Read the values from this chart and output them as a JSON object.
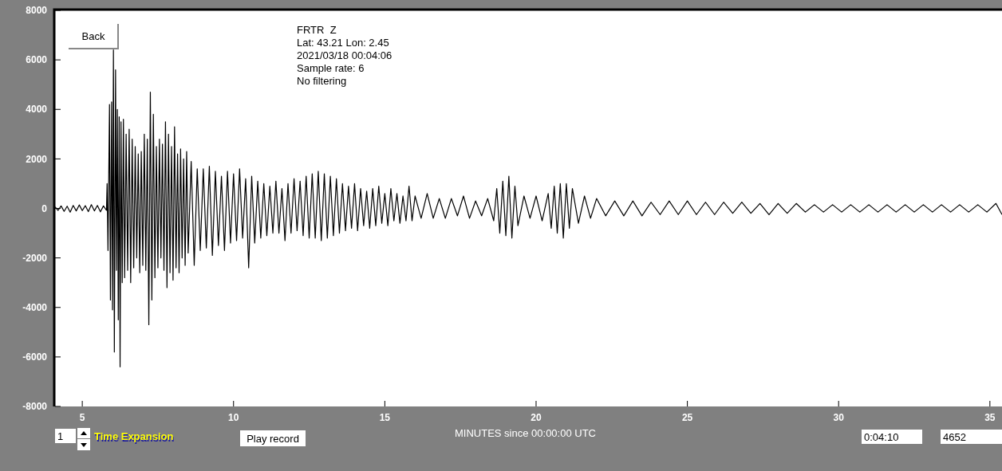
{
  "chart_data": {
    "type": "line",
    "title": "FRTR  Z",
    "xlabel": "MINUTES since 00:00:00 UTC",
    "annotations": [
      "Lat: 43.21 Lon: 2.45",
      "2021/03/18 00:04:06",
      "Sample rate: 6",
      "No filtering",
      "Back",
      "1",
      "Time Expansion",
      "Play record",
      "0:04:10",
      "4652"
    ],
    "xlim": [
      4.1,
      35.4
    ],
    "ylim": [
      -8000,
      8000
    ],
    "xticks": [
      5,
      10,
      15,
      20,
      25,
      30,
      35
    ],
    "yticks": [
      -8000,
      -6000,
      -4000,
      -2000,
      0,
      2000,
      4000,
      6000,
      8000
    ],
    "grid": false,
    "marker": "none",
    "line_style": "solid",
    "series": [
      {
        "color": "#000000",
        "x": [
          4.1,
          4.2,
          4.3,
          4.4,
          4.5,
          4.6,
          4.7,
          4.8,
          4.9,
          5.0,
          5.1,
          5.2,
          5.3,
          5.4,
          5.5,
          5.6,
          5.7,
          5.8,
          5.82,
          5.85,
          5.9,
          5.93,
          5.97,
          6.0,
          6.03,
          6.06,
          6.1,
          6.13,
          6.16,
          6.19,
          6.22,
          6.25,
          6.28,
          6.32,
          6.36,
          6.4,
          6.45,
          6.5,
          6.55,
          6.6,
          6.65,
          6.7,
          6.75,
          6.8,
          6.85,
          6.9,
          6.95,
          7.0,
          7.05,
          7.1,
          7.15,
          7.2,
          7.25,
          7.3,
          7.35,
          7.4,
          7.45,
          7.5,
          7.55,
          7.6,
          7.65,
          7.7,
          7.75,
          7.8,
          7.85,
          7.9,
          7.95,
          8.0,
          8.05,
          8.1,
          8.15,
          8.2,
          8.25,
          8.3,
          8.35,
          8.4,
          8.45,
          8.5,
          8.6,
          8.7,
          8.8,
          8.9,
          9.0,
          9.1,
          9.2,
          9.3,
          9.4,
          9.5,
          9.6,
          9.7,
          9.8,
          9.9,
          10.0,
          10.1,
          10.2,
          10.3,
          10.4,
          10.5,
          10.6,
          10.7,
          10.8,
          10.9,
          11.0,
          11.1,
          11.2,
          11.3,
          11.4,
          11.5,
          11.6,
          11.7,
          11.8,
          11.9,
          12.0,
          12.1,
          12.2,
          12.3,
          12.4,
          12.5,
          12.6,
          12.7,
          12.8,
          12.9,
          13.0,
          13.1,
          13.2,
          13.3,
          13.4,
          13.5,
          13.6,
          13.7,
          13.8,
          13.9,
          14.0,
          14.1,
          14.2,
          14.3,
          14.4,
          14.5,
          14.6,
          14.7,
          14.8,
          14.9,
          15.0,
          15.1,
          15.2,
          15.3,
          15.4,
          15.5,
          15.6,
          15.7,
          15.8,
          15.9,
          16.0,
          16.2,
          16.4,
          16.6,
          16.8,
          17.0,
          17.2,
          17.4,
          17.6,
          17.8,
          18.0,
          18.2,
          18.4,
          18.6,
          18.7,
          18.8,
          18.9,
          19.0,
          19.1,
          19.2,
          19.3,
          19.4,
          19.6,
          19.8,
          20.0,
          20.2,
          20.4,
          20.5,
          20.6,
          20.7,
          20.8,
          20.9,
          21.0,
          21.1,
          21.2,
          21.4,
          21.6,
          21.8,
          22.0,
          22.3,
          22.6,
          22.9,
          23.2,
          23.5,
          23.8,
          24.1,
          24.4,
          24.7,
          25.0,
          25.3,
          25.6,
          25.9,
          26.2,
          26.5,
          26.8,
          27.1,
          27.4,
          27.7,
          28.0,
          28.3,
          28.6,
          28.9,
          29.2,
          29.5,
          29.8,
          30.1,
          30.4,
          30.7,
          31.0,
          31.3,
          31.6,
          31.9,
          32.2,
          32.5,
          32.8,
          33.1,
          33.4,
          33.7,
          34.0,
          34.3,
          34.6,
          34.9,
          35.2,
          35.4
        ],
        "values": [
          60,
          -80,
          100,
          -120,
          90,
          -150,
          120,
          -100,
          140,
          -90,
          110,
          -130,
          150,
          -100,
          120,
          -140,
          100,
          -80,
          1000,
          -1700,
          4200,
          -3700,
          4300,
          -4100,
          6400,
          -5800,
          5600,
          -2500,
          4000,
          -4500,
          3700,
          -6400,
          3500,
          -3000,
          3600,
          -2800,
          3000,
          -2500,
          3200,
          -3000,
          2800,
          -2400,
          2500,
          -2000,
          2200,
          -2600,
          2300,
          -2300,
          3000,
          -2500,
          2800,
          -4700,
          4700,
          -3700,
          3800,
          -2800,
          2500,
          -2400,
          2800,
          -2000,
          2600,
          -2500,
          3500,
          -3200,
          3000,
          -2600,
          2500,
          -2900,
          3300,
          -2400,
          2200,
          -2600,
          2400,
          -2000,
          2000,
          -2300,
          2300,
          -1800,
          1900,
          -2300,
          1600,
          -1700,
          1600,
          -1600,
          1700,
          -1900,
          1500,
          -1500,
          1300,
          -1700,
          1500,
          -1400,
          1400,
          -1300,
          1600,
          -1200,
          1200,
          -2400,
          1300,
          -1400,
          1100,
          -1200,
          1000,
          -1100,
          900,
          -1000,
          1100,
          -1000,
          800,
          -1300,
          1000,
          -1000,
          1200,
          -900,
          1100,
          -1100,
          1300,
          -1200,
          1400,
          -1200,
          1500,
          -1300,
          1400,
          -1200,
          1300,
          -1100,
          1200,
          -1000,
          1000,
          -900,
          900,
          -800,
          1000,
          -900,
          800,
          -700,
          700,
          -800,
          800,
          -700,
          900,
          -600,
          600,
          -700,
          800,
          -500,
          600,
          -600,
          500,
          -500,
          900,
          -500,
          500,
          -400,
          600,
          -400,
          400,
          -400,
          400,
          -300,
          500,
          -400,
          300,
          -300,
          400,
          -500,
          800,
          -1000,
          1100,
          -1100,
          1300,
          -1200,
          900,
          -700,
          500,
          -400,
          500,
          -500,
          600,
          -800,
          900,
          -1000,
          1000,
          -1200,
          1000,
          -800,
          800,
          -600,
          500,
          -400,
          400,
          -300,
          300,
          -300,
          300,
          -300,
          250,
          -250,
          300,
          -250,
          300,
          -250,
          250,
          -250,
          250,
          -200,
          250,
          -200,
          200,
          -250,
          200,
          -200,
          200,
          -150,
          150,
          -150,
          150,
          -150,
          150,
          -150,
          150,
          -150,
          150,
          -150,
          150,
          -150,
          150,
          -150,
          150,
          -150,
          150,
          -150,
          150,
          -150,
          200,
          -250
        ]
      }
    ]
  }
}
